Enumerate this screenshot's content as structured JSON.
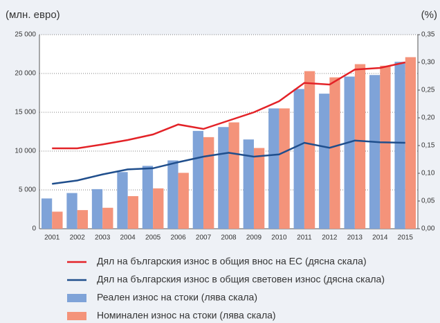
{
  "chart_data": {
    "type": "bar",
    "y_label": "(млн. евро)",
    "y2_label": "(%)",
    "categories": [
      "2001",
      "2002",
      "2003",
      "2004",
      "2005",
      "2006",
      "2007",
      "2008",
      "2009",
      "2010",
      "2011",
      "2012",
      "2013",
      "2014",
      "2015"
    ],
    "series": [
      {
        "name": "Дял на българския износ в общия внос на ЕС (дясна скала)",
        "type": "line",
        "axis": "y2",
        "color": "#e32227",
        "values": [
          0.145,
          0.145,
          0.152,
          0.16,
          0.17,
          0.188,
          0.18,
          0.195,
          0.21,
          0.23,
          0.263,
          0.26,
          0.287,
          0.29,
          0.3
        ]
      },
      {
        "name": "Дял на българския износ в общия световен износ (дясна скала)",
        "type": "line",
        "axis": "y2",
        "color": "#1f4e8c",
        "values": [
          0.081,
          0.087,
          0.098,
          0.107,
          0.109,
          0.12,
          0.13,
          0.137,
          0.13,
          0.134,
          0.155,
          0.146,
          0.159,
          0.156,
          0.155
        ]
      },
      {
        "name": "Реален износ на стоки (лява скала)",
        "type": "bar",
        "color": "#7fa3d8",
        "values": [
          3900,
          4600,
          5100,
          7300,
          8100,
          8800,
          12600,
          13100,
          11500,
          15500,
          18000,
          17400,
          19600,
          19800,
          21500
        ]
      },
      {
        "name": "Номинален износ на стоки (лява скала)",
        "type": "bar",
        "color": "#f4937a",
        "values": [
          2200,
          2400,
          2700,
          4200,
          5200,
          7200,
          11800,
          13700,
          10400,
          15500,
          20300,
          19500,
          21200,
          21000,
          22100
        ]
      }
    ],
    "ylim": [
      0,
      25000
    ],
    "yticks": [
      0,
      {
        "value": 5000,
        "label": "5 000"
      },
      {
        "value": 10000,
        "label": "10 000"
      },
      {
        "value": 15000,
        "label": "15 000"
      },
      {
        "value": 20000,
        "label": "20 000"
      },
      {
        "value": 25000,
        "label": "25 000"
      }
    ],
    "y2lim": [
      0,
      0.35
    ],
    "y2ticks": [
      {
        "value": 0,
        "label": "0,00"
      },
      {
        "value": 0.05,
        "label": "0,05"
      },
      {
        "value": 0.1,
        "label": "0,10"
      },
      {
        "value": 0.15,
        "label": "0,15"
      },
      {
        "value": 0.2,
        "label": "0,20"
      },
      {
        "value": 0.25,
        "label": "0,25"
      },
      {
        "value": 0.3,
        "label": "0,30"
      },
      {
        "value": 0.35,
        "label": "0,35"
      }
    ],
    "grid": true
  }
}
